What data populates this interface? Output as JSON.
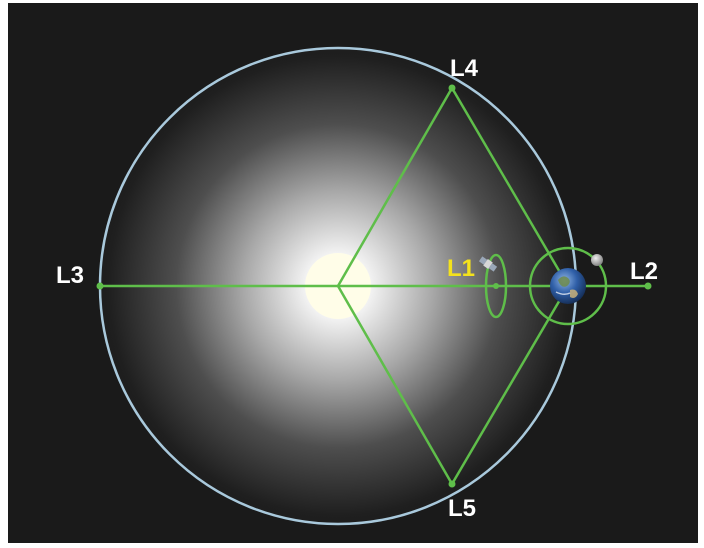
{
  "labels": {
    "l1": "L1",
    "l2": "L2",
    "l3": "L3",
    "l4": "L4",
    "l5": "L5"
  },
  "colors": {
    "background": "#1a1a1a",
    "orbit": "#a9c9dc",
    "lines": "#5fbe4a",
    "label": "#ffffff",
    "l1_label": "#f4e21c",
    "sun": "#fffde8",
    "earth": "#2f5fa8"
  },
  "icons": {
    "sun": "sun-icon",
    "earth": "earth-icon",
    "satellite": "satellite-icon",
    "moon": "moon-icon"
  }
}
